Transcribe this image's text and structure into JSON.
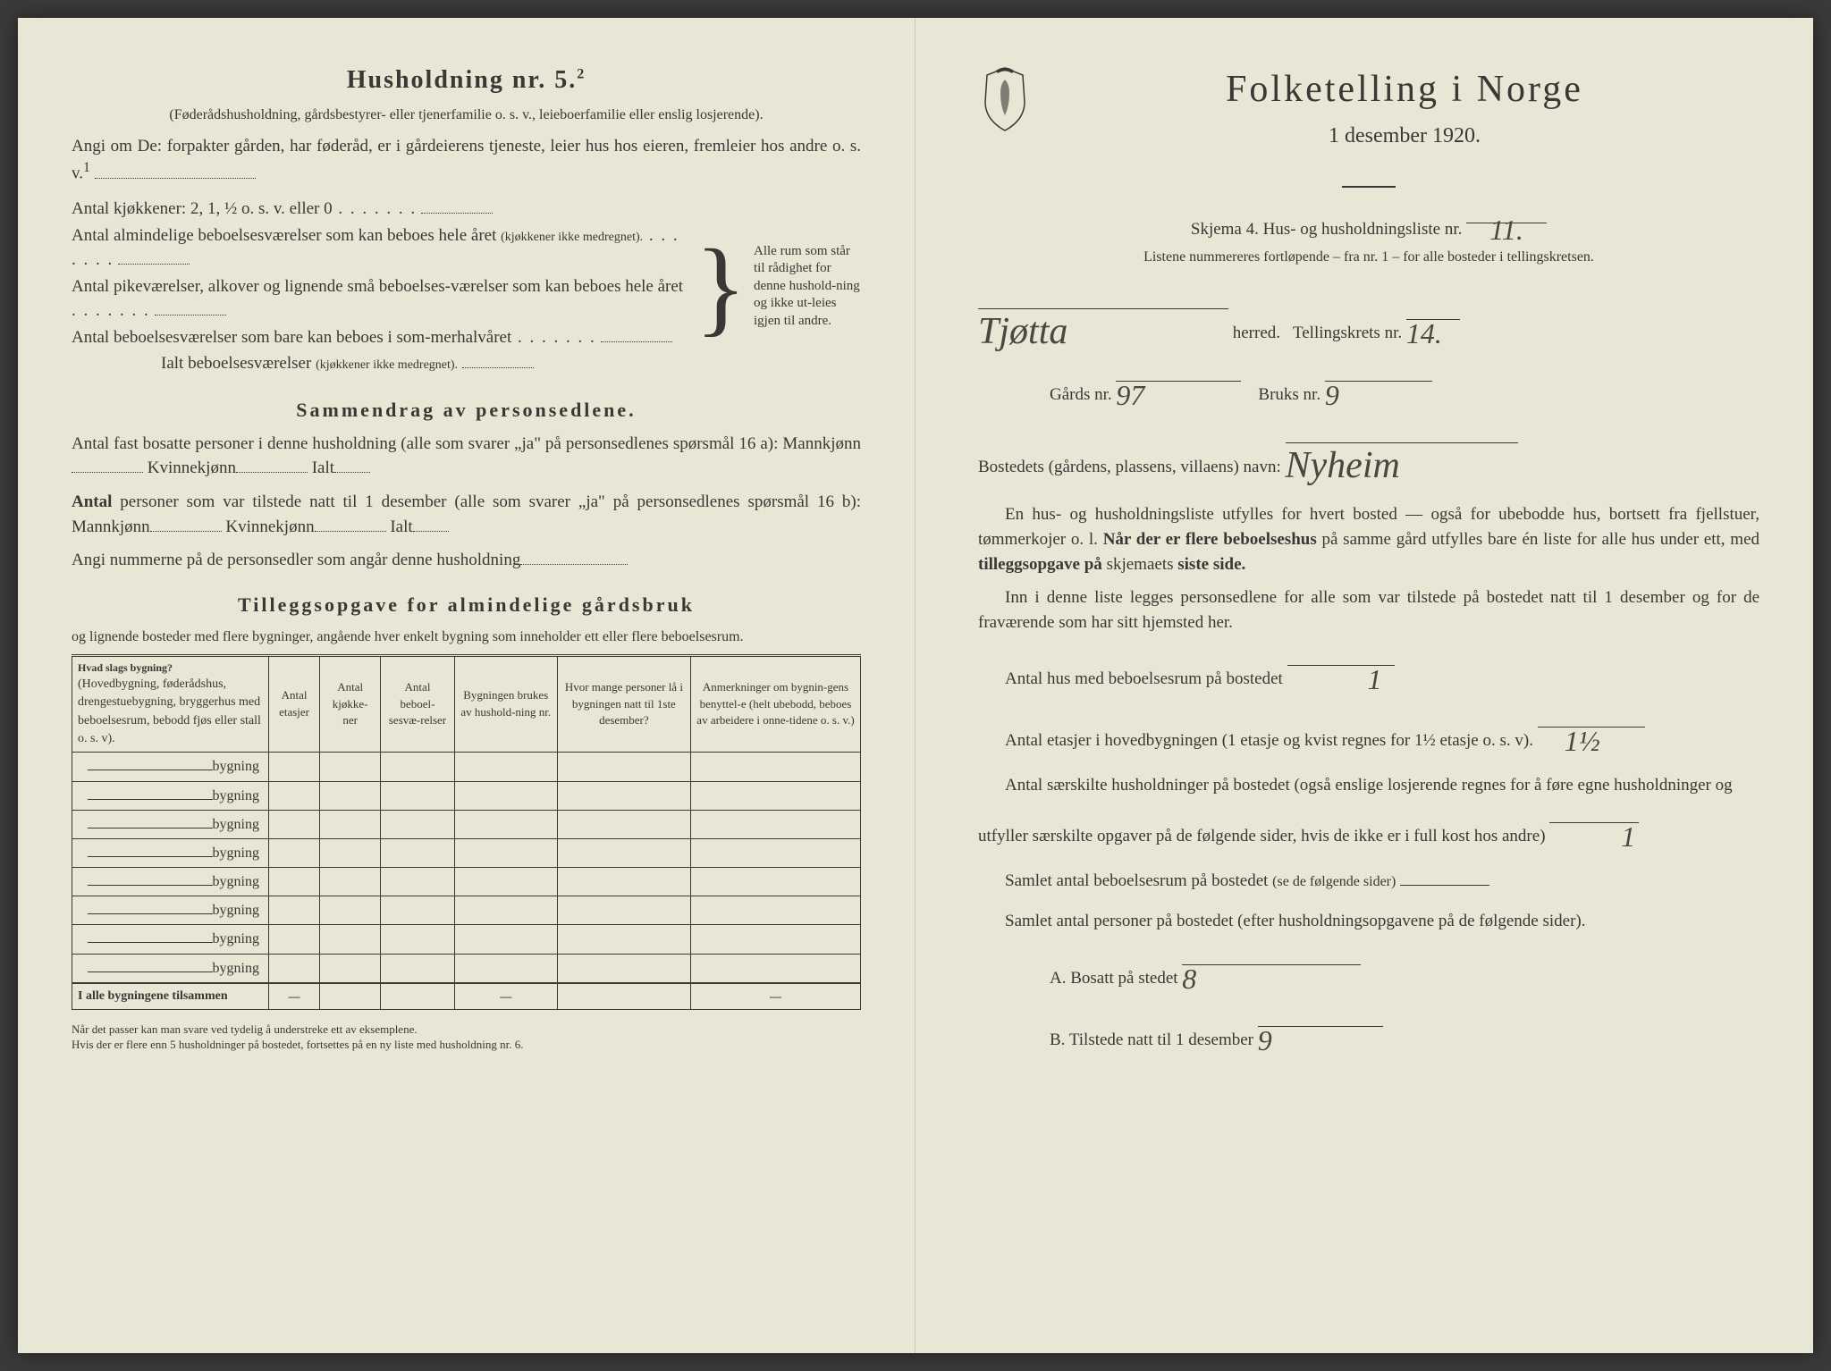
{
  "left": {
    "heading": "Husholdning nr. 5.",
    "heading_sup": "2",
    "sub1": "(Føderådshusholdning, gårdsbestyrer- eller tjenerfamilie o. s. v., leieboerfamilie eller enslig losjerende).",
    "para1a": "Angi om De: forpakter gården, har føderåd, er i gårdeierens tjeneste, leier hus hos eieren, fremleier hos andre o. s. v.",
    "sup1": "1",
    "kitchens_label": "Antal kjøkkener: 2, 1, ½ o. s. v. eller 0",
    "rooms1": "Antal almindelige beboelsesværelser som kan beboes hele året",
    "rooms1_note": "(kjøkkener ikke medregnet).",
    "rooms2": "Antal pikeværelser, alkover og lignende små beboelses-værelser som kan beboes hele året",
    "rooms3": "Antal beboelsesværelser som bare kan beboes i som-merhalvåret",
    "total_rooms": "Ialt beboelsesværelser",
    "total_rooms_note": "(kjøkkener ikke medregnet).",
    "brace_text": "Alle rum som står til rådighet for denne hushold-ning og ikke ut-leies igjen til andre.",
    "summary_heading": "Sammendrag av personsedlene.",
    "summary1": "Antal fast bosatte personer i denne husholdning (alle som svarer „ja\" på personsedlenes spørsmål 16 a): Mannkjønn",
    "kvinne": "Kvinnekjønn",
    "ialt": "Ialt",
    "summary2_prefix": "Antal",
    "summary2": " personer som var tilstede natt til 1 desember (alle som svarer „ja\" på personsedlenes spørsmål 16 b): Mannkjønn",
    "summary3": "Angi nummerne på de personsedler som angår denne husholdning",
    "tillegg_heading": "Tilleggsopgave for almindelige gårdsbruk",
    "tillegg_sub": "og lignende bosteder med flere bygninger, angående hver enkelt bygning som inneholder ett eller flere beboelsesrum.",
    "table": {
      "headers": [
        "Hvad slags bygning?",
        "Antal etasjer",
        "Antal kjøkke-ner",
        "Antal beboel-sesvæ-relser",
        "Bygningen brukes av hushold-ning nr.",
        "Hvor mange personer lå i bygningen natt til 1ste desember?",
        "Anmerkninger om bygnin-gens benyttel-e (helt ubebodd, beboes av arbeidere i onne-tidene o. s. v.)"
      ],
      "desc_note": "(Hovedbygning, føderådshus, drengestuebygning, bryggerhus med beboelsesrum, bebodd fjøs eller stall o. s. v).",
      "row_label": "bygning",
      "row_count": 8,
      "total_label": "I alle bygningene tilsammen",
      "dash": "—"
    },
    "footnote1": "Når det passer kan man svare ved tydelig å understreke ett av eksemplene.",
    "footnote2": "Hvis der er flere enn 5 husholdninger på bostedet, fortsettes på en ny liste med husholdning nr. 6."
  },
  "right": {
    "title": "Folketelling i Norge",
    "date": "1 desember 1920.",
    "skjema": "Skjema 4.  Hus- og husholdningsliste nr.",
    "skjema_val": "11.",
    "listene": "Listene nummereres fortløpende – fra nr. 1 – for alle bosteder i tellingskretsen.",
    "herred": "herred.",
    "herred_val": "Tjøtta",
    "tellingskrets": "Tellingskrets nr.",
    "tellingskrets_val": "14.",
    "gards": "Gårds nr.",
    "gards_val": "97",
    "bruks": "Bruks nr.",
    "bruks_val": "9",
    "bostedet": "Bostedets (gårdens, plassens, villaens) navn:",
    "bostedet_val": "Nyheim",
    "para1": "En hus- og husholdningsliste utfylles for hvert bosted — også for ubebodde hus, bortsett fra fjellstuer, tømmerkojer o. l.",
    "para1b": "Når der er flere beboelseshus",
    "para1c": " på samme gård utfylles bare én liste for alle hus under ett, med ",
    "para1d": "tilleggsopgave på",
    "para1e": " skjemaets ",
    "para1f": "siste side.",
    "para2": "Inn i denne liste legges personsedlene for alle som var tilstede på bostedet natt til 1 desember og for de fraværende som har sitt hjemsted her.",
    "q1": "Antal hus med beboelsesrum på bostedet",
    "q1_val": "1",
    "q2": "Antal etasjer i hovedbygningen (1 etasje og kvist regnes for 1½ etasje o. s. v).",
    "q2_val": "1½",
    "q3": "Antal særskilte husholdninger på bostedet (også enslige losjerende regnes for å føre egne husholdninger og utfyller særskilte opgaver på de følgende sider, hvis de ikke er i full kost hos andre)",
    "q3_val": "1",
    "q4": "Samlet antal beboelsesrum på bostedet",
    "q4_note": "(se de følgende sider)",
    "q5": "Samlet antal personer på bostedet (efter husholdningsopgavene på de følgende sider).",
    "qA": "A.  Bosatt på stedet",
    "qA_val": "8",
    "qB": "B.  Tilstede natt til 1 desember",
    "qB_val": "9"
  }
}
